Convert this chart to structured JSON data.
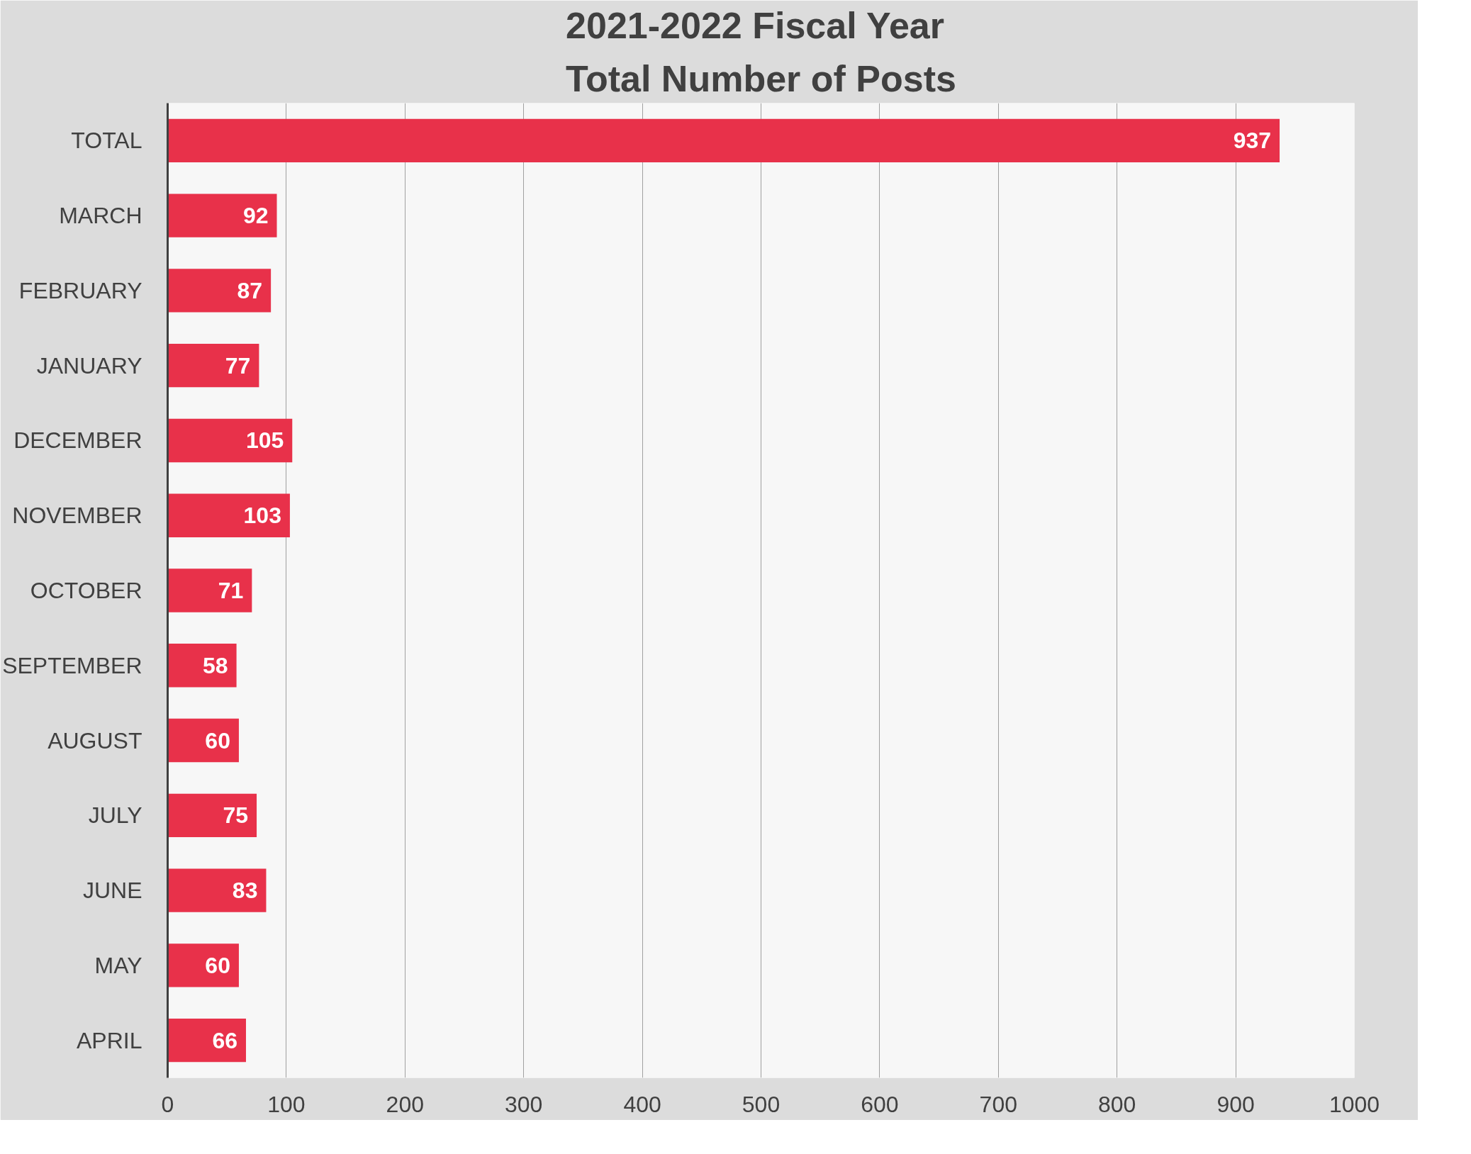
{
  "chart_data": {
    "type": "bar",
    "orientation": "horizontal",
    "title": "2021-2022 Fiscal Year\nTotal Number of Posts",
    "categories": [
      "TOTAL",
      "MARCH",
      "FEBRUARY",
      "JANUARY",
      "DECEMBER",
      "NOVEMBER",
      "OCTOBER",
      "SEPTEMBER",
      "AUGUST",
      "JULY",
      "JUNE",
      "MAY",
      "APRIL"
    ],
    "values": [
      937,
      92,
      87,
      77,
      105,
      103,
      71,
      58,
      60,
      75,
      83,
      60,
      66
    ],
    "color": "#e8314a",
    "xlim": [
      0,
      1000
    ],
    "xticks": [
      0,
      100,
      200,
      300,
      400,
      500,
      600,
      700,
      800,
      900,
      1000
    ],
    "grid": "x",
    "data_labels": true
  }
}
